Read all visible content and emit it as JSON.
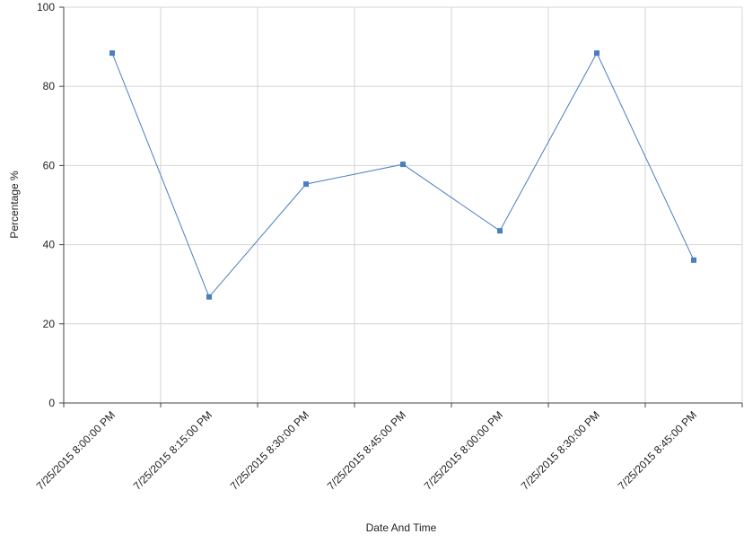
{
  "chart_data": {
    "type": "line",
    "x_label": "Date And Time",
    "y_label": "Percentage %",
    "categories": [
      "7/25/2015 8:00:00 PM",
      "7/25/2015 8:15:00 PM",
      "7/25/2015 8:30:00 PM",
      "7/25/2015 8:45:00 PM",
      "7/25/2015 8:00:00 PM",
      "7/25/2015 8:30:00 PM",
      "7/25/2015 8:45:00 PM"
    ],
    "values": [
      88.4,
      26.8,
      55.3,
      60.3,
      43.5,
      88.4,
      36.1
    ],
    "color": "#4a7ebf",
    "ylim": [
      0,
      100
    ],
    "yticks": [
      0,
      20,
      40,
      60,
      80,
      100
    ],
    "grid": true
  }
}
